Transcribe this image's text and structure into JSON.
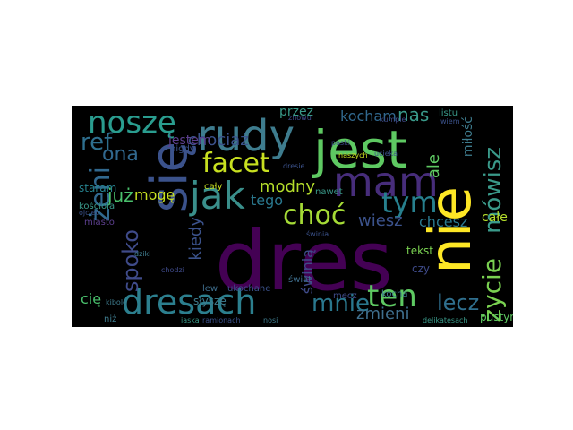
{
  "wordcloud": {
    "words": [
      {
        "text": "dres"
      },
      {
        "text": "się"
      },
      {
        "text": "jest"
      },
      {
        "text": "nie"
      },
      {
        "text": "rudy"
      },
      {
        "text": "mam"
      },
      {
        "text": "jak"
      },
      {
        "text": "dresach"
      },
      {
        "text": "noszę"
      },
      {
        "text": "facet"
      },
      {
        "text": "ref"
      },
      {
        "text": "żeni"
      },
      {
        "text": "choć"
      },
      {
        "text": "tym"
      },
      {
        "text": "ten"
      },
      {
        "text": "mnie"
      },
      {
        "text": "życie"
      },
      {
        "text": "mówisz"
      },
      {
        "text": "lecz"
      },
      {
        "text": "spoko"
      },
      {
        "text": "ona"
      },
      {
        "text": "chociaż"
      },
      {
        "text": "kocham"
      },
      {
        "text": "nas"
      },
      {
        "text": "modny"
      },
      {
        "text": "jestem"
      },
      {
        "text": "już"
      },
      {
        "text": "mogę"
      },
      {
        "text": "tego"
      },
      {
        "text": "kiedy"
      },
      {
        "text": "zmieni"
      },
      {
        "text": "świnią"
      },
      {
        "text": "wiesz"
      },
      {
        "text": "chcesz"
      },
      {
        "text": "ale"
      },
      {
        "text": "miłość"
      },
      {
        "text": "całe"
      },
      {
        "text": "przez"
      },
      {
        "text": "cię"
      },
      {
        "text": "staram"
      },
      {
        "text": "słyszę"
      },
      {
        "text": "pustym"
      },
      {
        "text": "tekst"
      },
      {
        "text": "czy"
      },
      {
        "text": "kościoła"
      },
      {
        "text": "miasto"
      },
      {
        "text": "nigdy"
      },
      {
        "text": "cały"
      },
      {
        "text": "świat"
      },
      {
        "text": "nawet"
      },
      {
        "text": "naszych"
      },
      {
        "text": "dresie"
      },
      {
        "text": "kocha"
      },
      {
        "text": "niż"
      },
      {
        "text": "lew"
      },
      {
        "text": "ukochane"
      },
      {
        "text": "mecz"
      },
      {
        "text": "ojciec"
      },
      {
        "text": "dziki"
      },
      {
        "text": "listu"
      },
      {
        "text": "znowu"
      },
      {
        "text": "paski"
      },
      {
        "text": "ucieka"
      },
      {
        "text": "kumple"
      },
      {
        "text": "wiem"
      },
      {
        "text": "kibole"
      },
      {
        "text": "ramionach"
      },
      {
        "text": "delikatesach"
      },
      {
        "text": "chodzi"
      },
      {
        "text": "świnia"
      },
      {
        "text": "nosi"
      },
      {
        "text": "iaska"
      }
    ]
  }
}
